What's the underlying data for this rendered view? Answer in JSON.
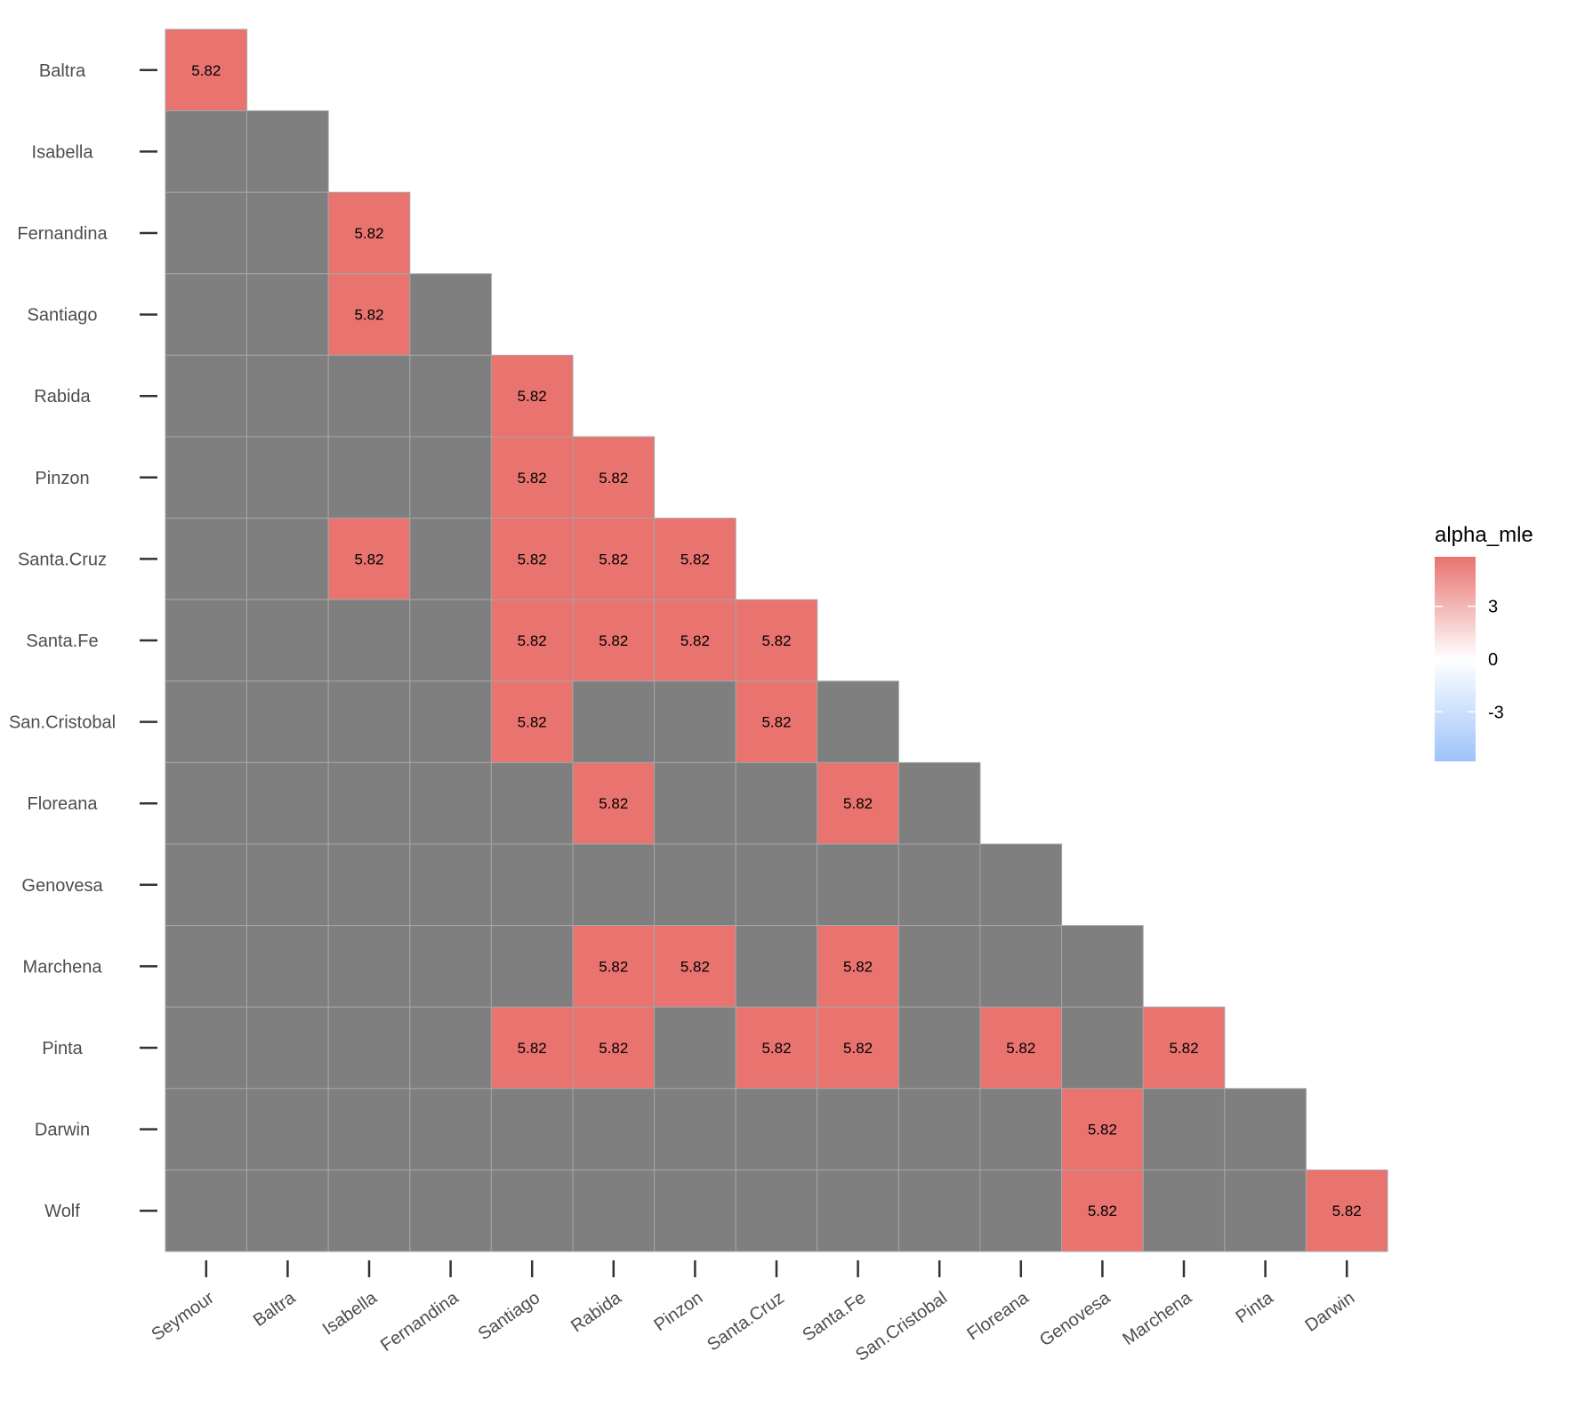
{
  "chart_data": {
    "type": "heatmap",
    "title": "",
    "xlabel": "",
    "ylabel": "",
    "x_categories": [
      "Seymour",
      "Baltra",
      "Isabella",
      "Fernandina",
      "Santiago",
      "Rabida",
      "Pinzon",
      "Santa.Cruz",
      "Santa.Fe",
      "San.Cristobal",
      "Floreana",
      "Genovesa",
      "Marchena",
      "Pinta",
      "Darwin"
    ],
    "y_categories": [
      "Baltra",
      "Isabella",
      "Fernandina",
      "Santiago",
      "Rabida",
      "Pinzon",
      "Santa.Cruz",
      "Santa.Fe",
      "San.Cristobal",
      "Floreana",
      "Genovesa",
      "Marchena",
      "Pinta",
      "Darwin",
      "Wolf"
    ],
    "values": [
      [
        5.82
      ],
      [
        null,
        null
      ],
      [
        null,
        null,
        5.82
      ],
      [
        null,
        null,
        5.82,
        null
      ],
      [
        null,
        null,
        null,
        null,
        5.82
      ],
      [
        null,
        null,
        null,
        null,
        5.82,
        5.82
      ],
      [
        null,
        null,
        5.82,
        null,
        5.82,
        5.82,
        5.82
      ],
      [
        null,
        null,
        null,
        null,
        5.82,
        5.82,
        5.82,
        5.82
      ],
      [
        null,
        null,
        null,
        null,
        5.82,
        null,
        null,
        5.82,
        null
      ],
      [
        null,
        null,
        null,
        null,
        null,
        5.82,
        null,
        null,
        5.82,
        null
      ],
      [
        null,
        null,
        null,
        null,
        null,
        null,
        null,
        null,
        null,
        null,
        null
      ],
      [
        null,
        null,
        null,
        null,
        null,
        5.82,
        5.82,
        null,
        5.82,
        null,
        null,
        null
      ],
      [
        null,
        null,
        null,
        null,
        5.82,
        5.82,
        null,
        5.82,
        5.82,
        null,
        5.82,
        null,
        5.82
      ],
      [
        null,
        null,
        null,
        null,
        null,
        null,
        null,
        null,
        null,
        null,
        null,
        5.82,
        null,
        null
      ],
      [
        null,
        null,
        null,
        null,
        null,
        null,
        null,
        null,
        null,
        null,
        null,
        5.82,
        null,
        null,
        5.82
      ]
    ],
    "value_labels": "5.82",
    "legend": {
      "title": "alpha_mle",
      "ticks": [
        3,
        0,
        -3
      ],
      "tick_labels": [
        "3",
        "0",
        "-3"
      ],
      "range": [
        -5.82,
        5.82
      ],
      "position": "right"
    },
    "colors": {
      "high": "#E8736F",
      "mid": "#FFFFFF",
      "low": "#9EC3FA",
      "na": "#7F7F7F",
      "cell_border": "#A6A6A6",
      "axis_text": "#4D4D4D"
    },
    "grid": false
  }
}
